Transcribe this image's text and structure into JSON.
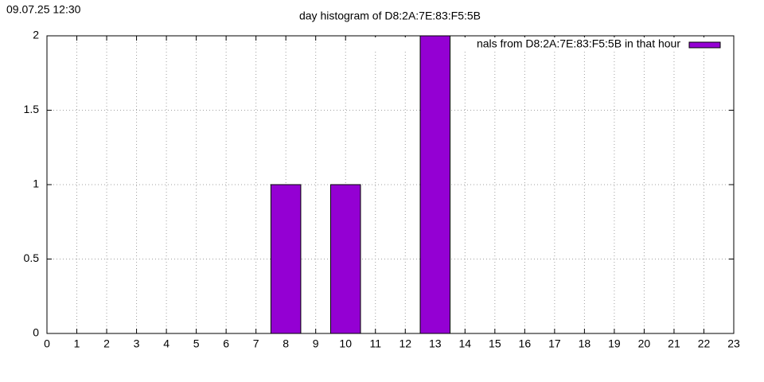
{
  "chart_data": {
    "type": "bar",
    "timestamp": "09.07.25 12:30",
    "title": "day histogram of D8:2A:7E:83:F5:5B",
    "x": [
      8,
      10,
      13
    ],
    "series": [
      {
        "name": "nals from D8:2A:7E:83:F5:5B in that hour",
        "color": "#9400d3",
        "values": [
          1,
          1,
          2
        ]
      }
    ],
    "xlim": [
      0,
      23
    ],
    "xticks": [
      0,
      1,
      2,
      3,
      4,
      5,
      6,
      7,
      8,
      9,
      10,
      11,
      12,
      13,
      14,
      15,
      16,
      17,
      18,
      19,
      20,
      21,
      22,
      23
    ],
    "ylim": [
      0,
      2
    ],
    "yticks": [
      0,
      0.5,
      1,
      1.5,
      2
    ],
    "grid": true,
    "legend": "top-right"
  }
}
